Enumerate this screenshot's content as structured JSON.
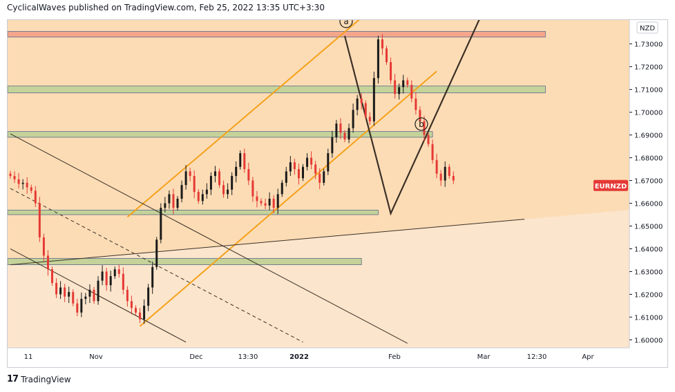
{
  "header": {
    "text": "CyclicalWaves published on TradingView.com, Feb 25, 2022 13:35 UTC+3:30"
  },
  "footer": {
    "brand": "TradingView",
    "logo": "17"
  },
  "colors": {
    "background_tan": "#fcdcb5",
    "background_light": "#fbe5cc",
    "red_zone": "#f4a68c",
    "green_zone": "#c5d39a",
    "channel": "#f5a11a",
    "wave": "#3b3026",
    "candle_up": "#1a1a1a",
    "candle_down": "#e53935",
    "symbol_tag": "#e53935"
  },
  "chart_data": {
    "type": "candlestick",
    "symbol": "EURNZD",
    "currency": "NZD",
    "ylim": [
      1.5965,
      1.7405
    ],
    "y_ticks": [
      "1.60000",
      "1.61000",
      "1.62000",
      "1.63000",
      "1.64000",
      "1.65000",
      "1.66000",
      "1.67000",
      "1.68000",
      "1.69000",
      "1.70000",
      "1.71000",
      "1.72000",
      "1.73000"
    ],
    "x_ticks": [
      "11",
      "Nov",
      "Dec",
      "13:30",
      "2022",
      "Feb",
      "Mar",
      "12:30",
      "Apr"
    ],
    "x_ticks_bold": [
      "2022"
    ],
    "wave_labels": [
      "a",
      "b"
    ],
    "zones": [
      {
        "type": "resistance",
        "color": "red",
        "price_low": 1.733,
        "price_high": 1.7355,
        "bar_start": 0,
        "bar_end": 128
      },
      {
        "type": "support",
        "color": "green",
        "price_low": 1.7085,
        "price_high": 1.7115,
        "bar_start": 0,
        "bar_end": 128
      },
      {
        "type": "support",
        "color": "green",
        "price_low": 1.689,
        "price_high": 1.6915,
        "bar_start": 0,
        "bar_end": 101
      },
      {
        "type": "support",
        "color": "green",
        "price_low": 1.655,
        "price_high": 1.657,
        "bar_start": 0,
        "bar_end": 88
      },
      {
        "type": "support",
        "color": "green",
        "price_low": 1.633,
        "price_high": 1.6358,
        "bar_start": 0,
        "bar_end": 84
      }
    ],
    "lines": [
      {
        "name": "channel-upper",
        "style": "solid",
        "color": "orange",
        "points": [
          [
            28,
            1.654
          ],
          [
            84,
            1.7415
          ]
        ]
      },
      {
        "name": "channel-lower",
        "style": "solid",
        "color": "orange",
        "points": [
          [
            31,
            1.606
          ],
          [
            102,
            1.718
          ]
        ]
      },
      {
        "name": "descending-upper",
        "style": "solid",
        "color": "dark",
        "points": [
          [
            0,
            1.6905
          ],
          [
            95,
            1.5985
          ]
        ]
      },
      {
        "name": "descending-mid",
        "style": "dashed",
        "color": "dark",
        "points": [
          [
            0,
            1.6665
          ],
          [
            70,
            1.599
          ]
        ]
      },
      {
        "name": "descending-lower",
        "style": "solid",
        "color": "dark",
        "points": [
          [
            0,
            1.64
          ],
          [
            42,
            1.599
          ]
        ]
      },
      {
        "name": "rising-long",
        "style": "solid",
        "color": "dark",
        "points": [
          [
            0,
            1.633
          ],
          [
            123,
            1.653
          ]
        ]
      },
      {
        "name": "wave-projection",
        "style": "solid",
        "color": "dark",
        "points": [
          [
            80,
            1.7335
          ],
          [
            91,
            1.6555
          ],
          [
            113,
            1.744
          ]
        ]
      }
    ],
    "candles_close": [
      1.672,
      1.6705,
      1.6685,
      1.669,
      1.667,
      1.6655,
      1.66,
      1.645,
      1.637,
      1.631,
      1.625,
      1.62,
      1.623,
      1.619,
      1.621,
      1.616,
      1.612,
      1.618,
      1.619,
      1.622,
      1.617,
      1.626,
      1.63,
      1.624,
      1.628,
      1.631,
      1.629,
      1.622,
      1.617,
      1.614,
      1.612,
      1.609,
      1.615,
      1.623,
      1.632,
      1.644,
      1.658,
      1.66,
      1.664,
      1.658,
      1.662,
      1.668,
      1.674,
      1.672,
      1.665,
      1.661,
      1.664,
      1.666,
      1.672,
      1.674,
      1.668,
      1.664,
      1.666,
      1.672,
      1.676,
      1.682,
      1.675,
      1.67,
      1.663,
      1.661,
      1.66,
      1.659,
      1.662,
      1.658,
      1.664,
      1.669,
      1.674,
      1.678,
      1.675,
      1.671,
      1.676,
      1.68,
      1.677,
      1.673,
      1.669,
      1.674,
      1.682,
      1.689,
      1.695,
      1.691,
      1.688,
      1.693,
      1.701,
      1.706,
      1.704,
      1.698,
      1.696,
      1.715,
      1.732,
      1.728,
      1.722,
      1.714,
      1.708,
      1.711,
      1.714,
      1.712,
      1.706,
      1.701,
      1.696,
      1.69,
      1.686,
      1.679,
      1.673,
      1.67,
      1.676,
      1.672,
      1.67
    ],
    "wave_a_bar": 80,
    "wave_b_bar": 98,
    "last_price_label_price": 1.6678
  }
}
